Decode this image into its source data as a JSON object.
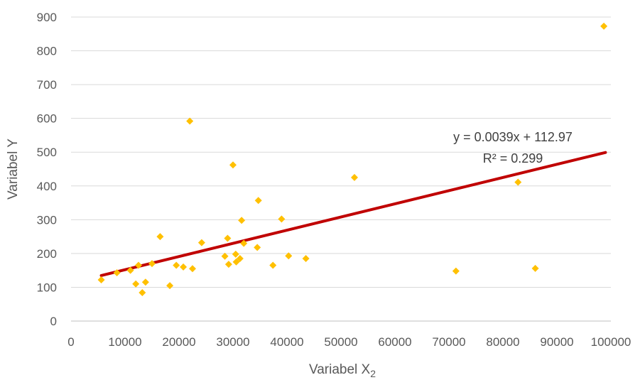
{
  "chart_data": {
    "type": "scatter",
    "xlabel": "Variabel X",
    "xlabel_sub": "2",
    "ylabel": "Variabel Y",
    "xlim": [
      0,
      100000
    ],
    "ylim": [
      0,
      900
    ],
    "x_ticks": [
      0,
      10000,
      20000,
      30000,
      40000,
      50000,
      60000,
      70000,
      80000,
      90000,
      100000
    ],
    "y_ticks": [
      0,
      100,
      200,
      300,
      400,
      500,
      600,
      700,
      800,
      900
    ],
    "grid": "horizontal",
    "legend": "none",
    "marker_color": "#FFC000",
    "trendline_color": "#C00000",
    "trendline": {
      "slope": 0.0039,
      "intercept": 112.97,
      "x_range": [
        5600,
        99000
      ],
      "equation": "y = 0.0039x + 112.97",
      "r_squared": "R² = 0.299"
    },
    "points": [
      {
        "x": 5600,
        "y": 122
      },
      {
        "x": 8500,
        "y": 143
      },
      {
        "x": 11000,
        "y": 150
      },
      {
        "x": 12000,
        "y": 110
      },
      {
        "x": 12500,
        "y": 165
      },
      {
        "x": 13200,
        "y": 84
      },
      {
        "x": 13800,
        "y": 115
      },
      {
        "x": 15000,
        "y": 170
      },
      {
        "x": 16500,
        "y": 250
      },
      {
        "x": 18300,
        "y": 105
      },
      {
        "x": 19500,
        "y": 165
      },
      {
        "x": 20800,
        "y": 160
      },
      {
        "x": 22000,
        "y": 592
      },
      {
        "x": 22500,
        "y": 155
      },
      {
        "x": 24200,
        "y": 232
      },
      {
        "x": 28500,
        "y": 192
      },
      {
        "x": 29000,
        "y": 245
      },
      {
        "x": 29200,
        "y": 168
      },
      {
        "x": 30000,
        "y": 462
      },
      {
        "x": 30500,
        "y": 198
      },
      {
        "x": 30600,
        "y": 175
      },
      {
        "x": 31300,
        "y": 185
      },
      {
        "x": 31600,
        "y": 298
      },
      {
        "x": 32000,
        "y": 230
      },
      {
        "x": 34500,
        "y": 218
      },
      {
        "x": 34700,
        "y": 357
      },
      {
        "x": 37400,
        "y": 165
      },
      {
        "x": 39000,
        "y": 302
      },
      {
        "x": 40300,
        "y": 193
      },
      {
        "x": 43500,
        "y": 185
      },
      {
        "x": 52500,
        "y": 425
      },
      {
        "x": 71300,
        "y": 148
      },
      {
        "x": 82800,
        "y": 411
      },
      {
        "x": 86000,
        "y": 156
      },
      {
        "x": 98700,
        "y": 873
      }
    ]
  }
}
